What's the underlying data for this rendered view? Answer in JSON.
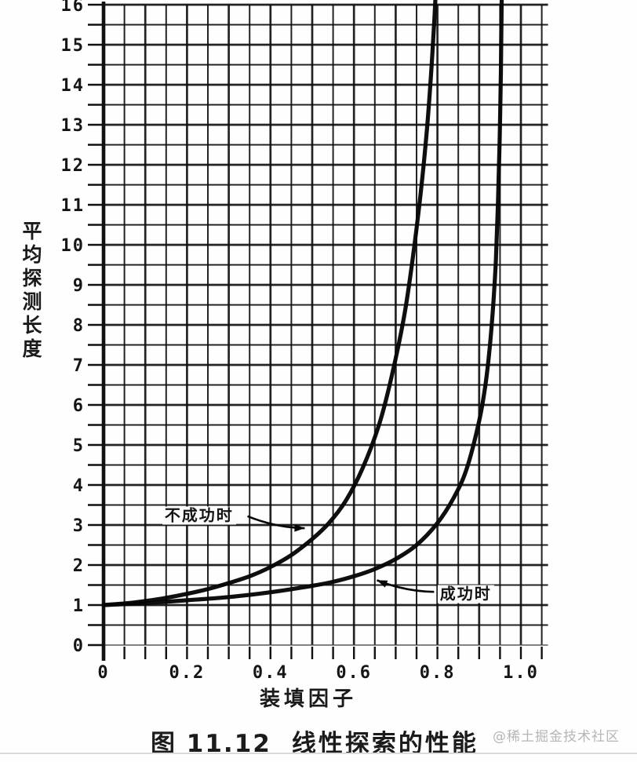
{
  "figure": {
    "caption_prefix": "图 11.12",
    "caption_title": "线性探索的性能",
    "watermark": "@稀土掘金技术社区"
  },
  "chart_data": {
    "type": "line",
    "title": "",
    "xlabel": "装填因子",
    "ylabel": "平均探测长度",
    "xlim": [
      0,
      1.065
    ],
    "ylim": [
      0,
      16
    ],
    "grid": "both",
    "x_grid_step": 0.05,
    "y_grid_step": 0.5,
    "ink_color": "#111111",
    "x_ticks": [
      {
        "v": 0.0,
        "label": "0"
      },
      {
        "v": 0.2,
        "label": "0.2"
      },
      {
        "v": 0.4,
        "label": "0.4"
      },
      {
        "v": 0.6,
        "label": "0.6"
      },
      {
        "v": 0.8,
        "label": "0.8"
      },
      {
        "v": 1.0,
        "label": "1.0"
      }
    ],
    "y_ticks": [
      {
        "v": 0,
        "label": "0"
      },
      {
        "v": 1,
        "label": "1"
      },
      {
        "v": 2,
        "label": "2"
      },
      {
        "v": 3,
        "label": "3"
      },
      {
        "v": 4,
        "label": "4"
      },
      {
        "v": 5,
        "label": "5"
      },
      {
        "v": 6,
        "label": "6"
      },
      {
        "v": 7,
        "label": "7"
      },
      {
        "v": 8,
        "label": "8"
      },
      {
        "v": 9,
        "label": "9"
      },
      {
        "v": 10,
        "label": "10"
      },
      {
        "v": 11,
        "label": "11"
      },
      {
        "v": 12,
        "label": "12"
      },
      {
        "v": 13,
        "label": "13"
      },
      {
        "v": 14,
        "label": "14"
      },
      {
        "v": 15,
        "label": "15"
      },
      {
        "v": 16,
        "label": "16"
      }
    ],
    "series": [
      {
        "name": "unsuccessful-search",
        "label": "不成功时",
        "points": [
          [
            0,
            1.0
          ],
          [
            0.05,
            1.04
          ],
          [
            0.1,
            1.1
          ],
          [
            0.15,
            1.18
          ],
          [
            0.2,
            1.28
          ],
          [
            0.25,
            1.4
          ],
          [
            0.3,
            1.55
          ],
          [
            0.35,
            1.72
          ],
          [
            0.4,
            1.95
          ],
          [
            0.45,
            2.25
          ],
          [
            0.5,
            2.65
          ],
          [
            0.54,
            3.05
          ],
          [
            0.58,
            3.6
          ],
          [
            0.62,
            4.4
          ],
          [
            0.66,
            5.5
          ],
          [
            0.69,
            6.7
          ],
          [
            0.72,
            8.2
          ],
          [
            0.74,
            9.6
          ],
          [
            0.76,
            11.3
          ],
          [
            0.775,
            12.9
          ],
          [
            0.785,
            14.3
          ],
          [
            0.793,
            15.7
          ],
          [
            0.8,
            17.2
          ]
        ]
      },
      {
        "name": "successful-search",
        "label": "成功时",
        "points": [
          [
            0,
            1.0
          ],
          [
            0.1,
            1.05
          ],
          [
            0.2,
            1.12
          ],
          [
            0.3,
            1.2
          ],
          [
            0.4,
            1.32
          ],
          [
            0.5,
            1.48
          ],
          [
            0.55,
            1.58
          ],
          [
            0.6,
            1.72
          ],
          [
            0.65,
            1.9
          ],
          [
            0.7,
            2.15
          ],
          [
            0.75,
            2.5
          ],
          [
            0.8,
            3.05
          ],
          [
            0.84,
            3.7
          ],
          [
            0.87,
            4.4
          ],
          [
            0.9,
            5.6
          ],
          [
            0.915,
            6.5
          ],
          [
            0.925,
            7.4
          ],
          [
            0.933,
            8.4
          ],
          [
            0.94,
            9.6
          ],
          [
            0.945,
            11.0
          ],
          [
            0.949,
            12.6
          ],
          [
            0.952,
            14.3
          ],
          [
            0.955,
            17.2
          ]
        ]
      }
    ],
    "annotations": [
      {
        "series": "unsuccessful-search",
        "label": "不成功时",
        "label_at": [
          0.229,
          3.24
        ],
        "arrow_from": [
          0.345,
          3.22
        ],
        "arrow_to": [
          0.482,
          2.92
        ]
      },
      {
        "series": "successful-search",
        "label": "成功时",
        "label_at": [
          0.868,
          1.27
        ],
        "arrow_from": [
          0.792,
          1.33
        ],
        "arrow_to": [
          0.655,
          1.62
        ]
      }
    ]
  }
}
